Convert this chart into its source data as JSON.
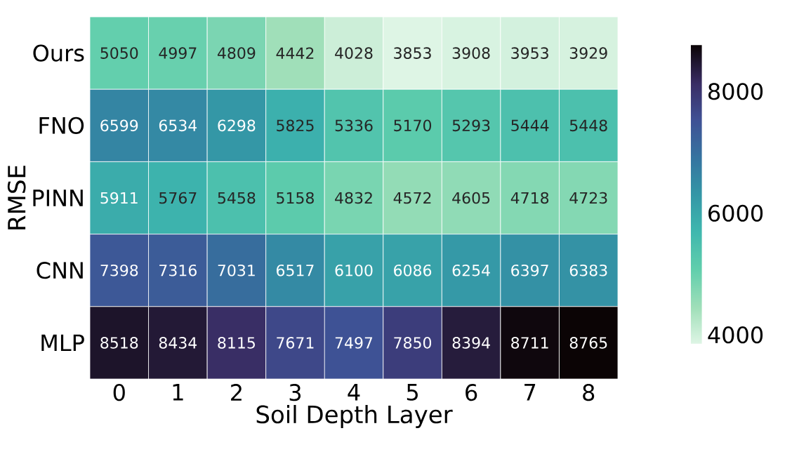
{
  "chart_data": {
    "type": "heatmap",
    "xlabel": "Soil Depth Layer",
    "ylabel": "RMSE",
    "categories": [
      "0",
      "1",
      "2",
      "3",
      "4",
      "5",
      "6",
      "7",
      "8"
    ],
    "y_categories": [
      "Ours",
      "FNO",
      "PINN",
      "CNN",
      "MLP"
    ],
    "cells": [
      [
        5050,
        4997,
        4809,
        4442,
        4028,
        3853,
        3908,
        3953,
        3929
      ],
      [
        6599,
        6534,
        6298,
        5825,
        5336,
        5170,
        5293,
        5444,
        5448
      ],
      [
        5911,
        5767,
        5458,
        5158,
        4832,
        4572,
        4605,
        4718,
        4723
      ],
      [
        7398,
        7316,
        7031,
        6517,
        6100,
        6086,
        6254,
        6397,
        6383
      ],
      [
        8518,
        8434,
        8115,
        7671,
        7497,
        7850,
        8394,
        8711,
        8765
      ]
    ],
    "clim": [
      3853,
      8765
    ],
    "cticks": [
      4000,
      6000,
      8000
    ],
    "data_labels": true
  }
}
